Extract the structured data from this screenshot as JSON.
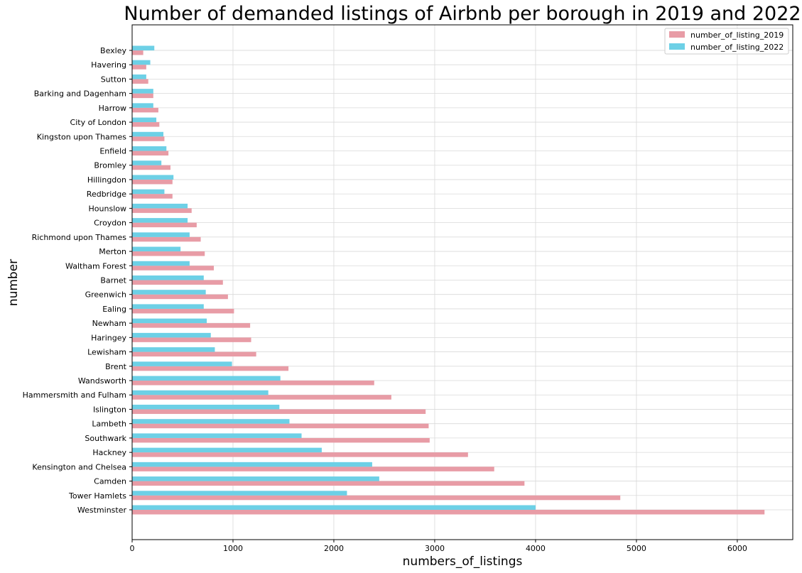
{
  "chart_data": {
    "type": "bar",
    "orientation": "horizontal",
    "title": "Number of demanded listings of Airbnb per borough in 2019 and 2022",
    "xlabel": "numbers_of_listings",
    "ylabel": "number",
    "xlim": [
      0,
      6550
    ],
    "xticks": [
      0,
      1000,
      2000,
      3000,
      4000,
      5000,
      6000
    ],
    "grid": true,
    "legend_position": "top-right",
    "categories": [
      "Westminster",
      "Tower Hamlets",
      "Camden",
      "Kensington and Chelsea",
      "Hackney",
      "Southwark",
      "Lambeth",
      "Islington",
      "Hammersmith and Fulham",
      "Wandsworth",
      "Brent",
      "Lewisham",
      "Haringey",
      "Newham",
      "Ealing",
      "Greenwich",
      "Barnet",
      "Waltham Forest",
      "Merton",
      "Richmond upon Thames",
      "Croydon",
      "Hounslow",
      "Redbridge",
      "Hillingdon",
      "Bromley",
      "Enfield",
      "Kingston upon Thames",
      "City of London",
      "Harrow",
      "Barking and Dagenham",
      "Sutton",
      "Havering",
      "Bexley"
    ],
    "series": [
      {
        "name": "number_of_listing_2019",
        "color": "#e89ca6",
        "values": [
          6270,
          4840,
          3890,
          3590,
          3330,
          2950,
          2940,
          2910,
          2570,
          2400,
          1550,
          1230,
          1180,
          1170,
          1010,
          950,
          900,
          810,
          720,
          680,
          640,
          590,
          400,
          400,
          380,
          360,
          320,
          270,
          260,
          210,
          160,
          140,
          110
        ]
      },
      {
        "name": "number_of_listing_2022",
        "color": "#6dd0e6",
        "values": [
          4000,
          2130,
          2450,
          2380,
          1880,
          1680,
          1560,
          1460,
          1350,
          1470,
          990,
          820,
          780,
          740,
          710,
          730,
          710,
          570,
          480,
          570,
          550,
          550,
          320,
          410,
          290,
          340,
          310,
          240,
          210,
          210,
          140,
          180,
          220
        ]
      }
    ]
  }
}
